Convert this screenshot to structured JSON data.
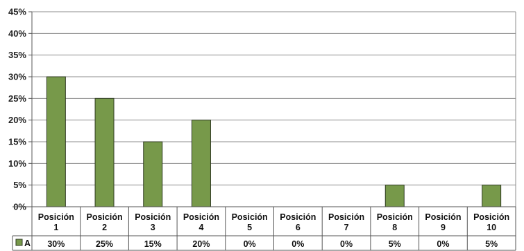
{
  "chart_data": {
    "type": "bar",
    "categories": [
      "Posición 1",
      "Posición 2",
      "Posición 3",
      "Posición 4",
      "Posición 5",
      "Posición 6",
      "Posición 7",
      "Posición 8",
      "Posición 9",
      "Posición 10"
    ],
    "series": [
      {
        "name": "A",
        "values": [
          30,
          25,
          15,
          20,
          0,
          0,
          0,
          5,
          0,
          5
        ],
        "labels": [
          "30%",
          "25%",
          "15%",
          "20%",
          "0%",
          "0%",
          "0%",
          "5%",
          "0%",
          "5%"
        ],
        "color": "#77994a"
      }
    ],
    "title": "",
    "xlabel": "",
    "ylabel": "",
    "ylim": [
      0,
      45
    ],
    "yticks": [
      0,
      5,
      10,
      15,
      20,
      25,
      30,
      35,
      40,
      45
    ],
    "ytick_labels": [
      "0%",
      "5%",
      "10%",
      "15%",
      "20%",
      "25%",
      "30%",
      "35%",
      "40%",
      "45%"
    ],
    "grid": true,
    "legend": "data-table-left"
  }
}
